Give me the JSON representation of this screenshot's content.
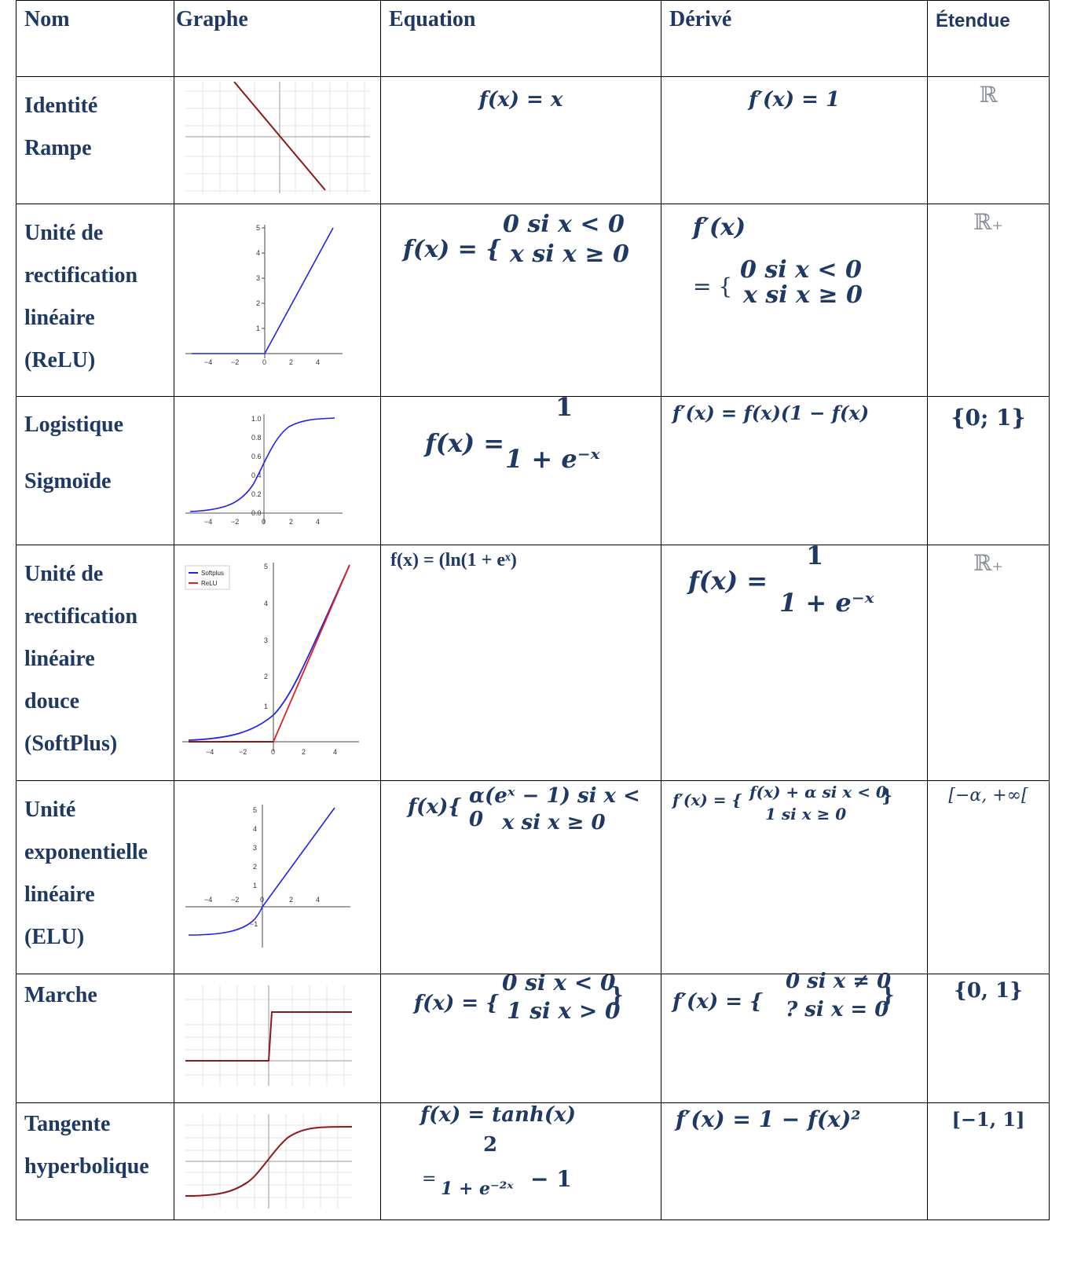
{
  "headers": {
    "nom": "Nom",
    "graphe": "Graphe",
    "equation": "Equation",
    "derive": "Dérivé",
    "etendue": "Étendue"
  },
  "rows": [
    {
      "name_lines": [
        "Identité",
        "Rampe"
      ],
      "equation": "f(x) = x",
      "derivative": "f′(x) = 1",
      "range": "ℝ"
    },
    {
      "name_lines": [
        "Unité de",
        "rectification",
        "linéaire",
        "(ReLU)"
      ],
      "equation_lhs": "f(x) = {",
      "equation_case1": "0 si x < 0",
      "equation_case2": "x si x ≥ 0",
      "derivative_lhs": "f′(x)",
      "derivative_eq": "=  {",
      "derivative_case1": "0 si x < 0",
      "derivative_case2": "x si x ≥ 0",
      "range": "ℝ₊",
      "graph_ticks_x": [
        "−4",
        "−2",
        "0",
        "2",
        "4"
      ],
      "graph_ticks_y": [
        "1",
        "2",
        "3",
        "4",
        "5"
      ]
    },
    {
      "name_lines": [
        "Logistique",
        "Sigmoïde"
      ],
      "equation_lhs": "f(x) =",
      "equation_num": "1",
      "equation_den": "1 + e⁻ˣ",
      "derivative": "f′(x) = f(x)(1 − f(x)",
      "range": "{0; 1}",
      "graph_ticks_x": [
        "−4",
        "−2",
        "0",
        "2",
        "4"
      ],
      "graph_ticks_y": [
        "0.0",
        "0.2",
        "0.4",
        "0.6",
        "0.8",
        "1.0"
      ]
    },
    {
      "name_lines": [
        "Unité de",
        "rectification",
        "linéaire",
        "douce",
        "(SoftPlus)"
      ],
      "equation": "f(x) = (ln(1 + eˣ)",
      "derivative_lhs": "f(x) =",
      "derivative_num": "1",
      "derivative_den": "1 + e⁻ˣ",
      "range": "ℝ₊",
      "legend": [
        "Softplus",
        "ReLU"
      ],
      "graph_ticks_x": [
        "−4",
        "−2",
        "0",
        "2",
        "4"
      ],
      "graph_ticks_y": [
        "1",
        "2",
        "3",
        "4",
        "5"
      ]
    },
    {
      "name_lines": [
        "Unité",
        "exponentielle",
        "linéaire",
        "(ELU)"
      ],
      "equation_lhs": "f(x){",
      "equation_case1": "α(eˣ − 1) si  x < 0",
      "equation_case2": "x si x ≥ 0",
      "derivative_lhs": "f′(x) =  {",
      "derivative_case1": "f(x) + α si x < 0",
      "derivative_case2": "1 si x ≥ 0",
      "derivative_close": "}",
      "range": "[−α, +∞[",
      "graph_ticks_x": [
        "−4",
        "−2",
        "0",
        "2",
        "4"
      ],
      "graph_ticks_y": [
        "−1",
        "1",
        "2",
        "3",
        "4",
        "5"
      ]
    },
    {
      "name_lines": [
        "Marche"
      ],
      "equation_lhs": "f(x) = {",
      "equation_case1": "0 si x < 0",
      "equation_case2": "1 si x > 0",
      "equation_close": "}",
      "derivative_lhs": "f′(x) =  {",
      "derivative_case1": "0 si x ≠ 0",
      "derivative_case2": "? si x = 0",
      "derivative_close": "}",
      "range": "{0, 1}"
    },
    {
      "name_lines": [
        "Tangente",
        "hyperbolique"
      ],
      "equation_line1": "f(x) = tanh(x)",
      "equation_num": "2",
      "equation_eq": "=",
      "equation_den": "1 + e⁻²ˣ",
      "equation_tail": "− 1",
      "derivative": "f′(x) = 1 − f(x)²",
      "range": "[−1, 1]"
    }
  ],
  "colors": {
    "text": "#1f3864",
    "border": "#000000",
    "relu_line": "#2222ee",
    "softplus_relu": "#e02020",
    "grid_line": "#8b1a1a"
  }
}
